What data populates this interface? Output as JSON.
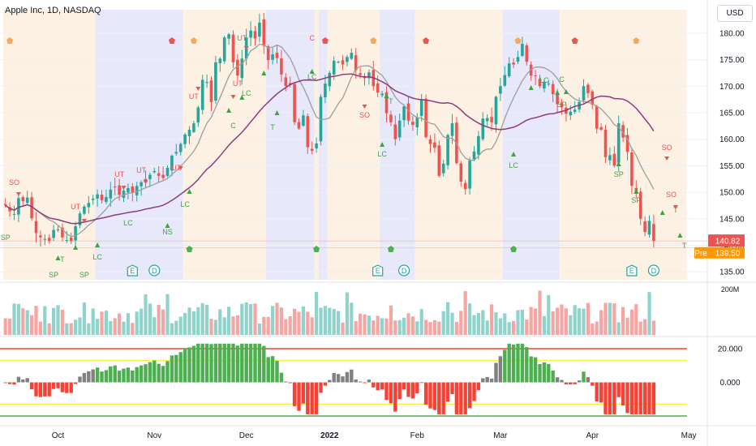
{
  "header": {
    "symbol_title": "Apple Inc, 1D, NASDAQ",
    "currency_button": "USD"
  },
  "price_badges": {
    "last": "140.82",
    "pre_label": "Pre",
    "pre_value": "139.50"
  },
  "colors": {
    "up": "#26a69a",
    "down": "#ef5350",
    "vol_up": "#8fd3cc",
    "vol_down": "#f6a5a3",
    "ma_fast": "#9e9e9e",
    "ma_slow": "#8e3b7f",
    "bg_orange": "#fdf1e3",
    "bg_blue": "#e8e8fb",
    "osc_green": "#4caf50",
    "osc_red": "#f44336",
    "osc_gray": "#808080",
    "line_red": "#f44336",
    "line_yellow": "#ffeb3b",
    "line_green": "#4caf50"
  },
  "chart_data": {
    "type": "candlestick",
    "title": "Apple Inc, 1D, NASDAQ",
    "price_axis": {
      "ticks": [
        180,
        175,
        170,
        165,
        160,
        155,
        150,
        145,
        140,
        135
      ],
      "tick_labels": [
        "180.00",
        "175.00",
        "170.00",
        "165.00",
        "160.00",
        "155.00",
        "150.00",
        "145.00",
        "140.00",
        "135.00"
      ],
      "range": [
        133.5,
        183.5
      ]
    },
    "time_axis": {
      "labels": [
        "Oct",
        "Nov",
        "Dec",
        "2022",
        "Feb",
        "Mar",
        "Apr",
        "May"
      ],
      "label_bar_index": [
        12,
        34,
        55,
        74,
        94,
        113,
        134,
        156
      ]
    },
    "closes": [
      147.5,
      146.4,
      145.9,
      148.9,
      148.3,
      149.0,
      145.1,
      142.3,
      141.5,
      141.2,
      140.8,
      142.9,
      143.0,
      141.5,
      141.0,
      140.8,
      143.6,
      146.0,
      147.3,
      148.0,
      148.8,
      149.6,
      148.5,
      149.1,
      150.5,
      151.0,
      149.5,
      150.3,
      150.8,
      150.0,
      151.2,
      151.9,
      152.5,
      153.3,
      154.0,
      153.1,
      152.7,
      154.6,
      156.9,
      157.6,
      159.1,
      160.9,
      161.8,
      163.0,
      166.0,
      171.2,
      170.8,
      167.0,
      174.5,
      175.2,
      179.2,
      179.8,
      174.5,
      172.0,
      175.2,
      179.2,
      180.5,
      179.0,
      182.0,
      177.6,
      174.9,
      176.0,
      175.3,
      172.2,
      170.0,
      170.2,
      163.2,
      162.0,
      164.5,
      158.5,
      157.8,
      159.2,
      168.0,
      170.5,
      172.5,
      174.8,
      174.6,
      174.1,
      175.5,
      176.3,
      173.0,
      172.1,
      171.5,
      172.6,
      170.0,
      168.8,
      168.6,
      164.9,
      163.2,
      160.0,
      163.5,
      166.2,
      163.5,
      162.7,
      164.1,
      167.5,
      160.4,
      159.1,
      158.4,
      153.1,
      155.4,
      160.8,
      163.0,
      155.5,
      152.0,
      150.6,
      156.0,
      157.7,
      160.6,
      163.9,
      164.0,
      163.2,
      168.0,
      170.0,
      172.1,
      174.3,
      174.1,
      175.5,
      178.0,
      174.6,
      172.0,
      171.9,
      170.0,
      170.8,
      170.5,
      168.5,
      166.6,
      166.0,
      164.8,
      165.2,
      165.6,
      167.0,
      170.0,
      168.7,
      166.5,
      162.0,
      161.8,
      156.6,
      157.0,
      155.0,
      163.0,
      160.3,
      157.6,
      151.2,
      150.0,
      145.0,
      142.5,
      144.6,
      140.8
    ],
    "moving_averages": [
      {
        "name": "fast",
        "color": "#9e9e9e"
      },
      {
        "name": "slow",
        "color": "#8e3b7f"
      }
    ],
    "signal_labels": [
      "SO",
      "SP",
      "SP",
      "T",
      "SP",
      "UT",
      "UT",
      "UT",
      "UT",
      "UT",
      "LC",
      "NS",
      "LC",
      "UT",
      "UT",
      "LC",
      "C",
      "T",
      "LC",
      "C",
      "LC",
      "SO",
      "LC",
      "T",
      "C",
      "LC",
      "LC",
      "SP",
      "SP",
      "SP",
      "SO",
      "T",
      "SO",
      "T"
    ],
    "event_badges": [
      "E",
      "D",
      "E",
      "D",
      "E",
      "D"
    ],
    "volume": {
      "max_label": "200M"
    },
    "oscillator": {
      "ticks": [
        "20.000",
        "0.000"
      ],
      "levels": [
        20,
        13,
        0,
        -13,
        -20
      ]
    }
  }
}
